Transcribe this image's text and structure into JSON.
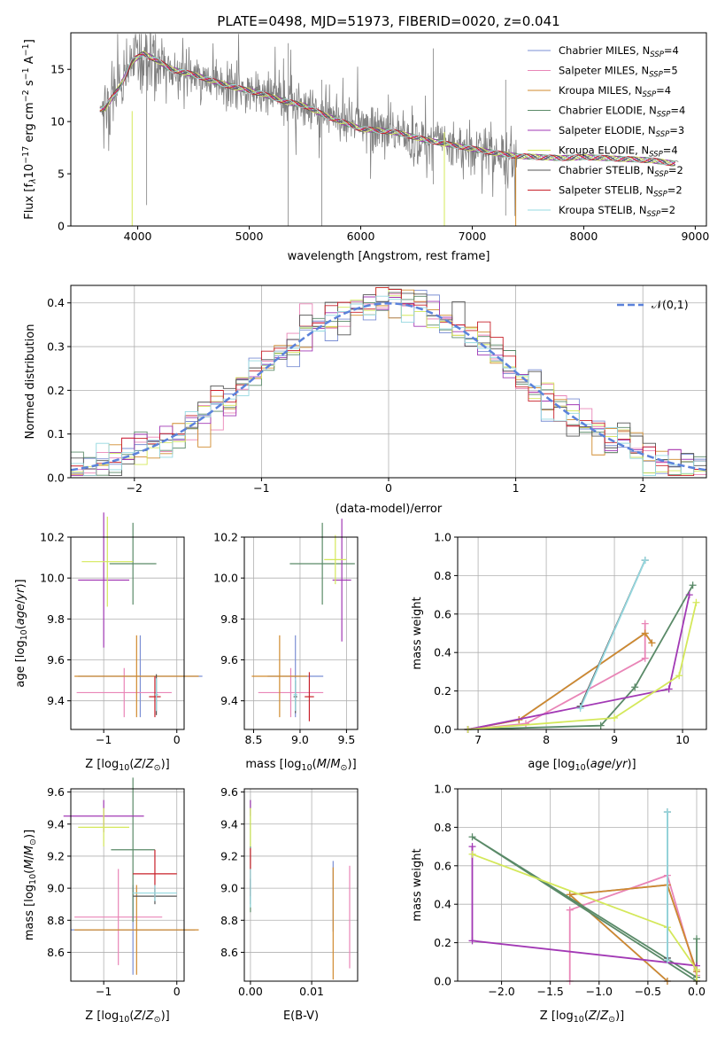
{
  "figure": {
    "title": "PLATE=0498, MJD=51973, FIBERID=0020, z=0.041"
  },
  "chart_data": [
    {
      "type": "line",
      "title": "PLATE=0498, MJD=51973, FIBERID=0020, z=0.041",
      "xlabel": "wavelength [Angstrom, rest frame]",
      "ylabel": "Flux [f_λ 10^-17 erg cm^-2 s^-1 A^-1]",
      "xlim": [
        3400,
        9100
      ],
      "ylim": [
        0,
        18.5
      ],
      "xticks": [
        4000,
        5000,
        6000,
        7000,
        8000,
        9000
      ],
      "yticks": [
        0,
        5,
        10,
        15
      ],
      "legend_position": "upper right",
      "series": [
        {
          "name": "Chabrier MILES, N_SSP=4",
          "color": "#7b8fd4"
        },
        {
          "name": "Salpeter MILES, N_SSP=5",
          "color": "#e985b7"
        },
        {
          "name": "Kroupa MILES, N_SSP=4",
          "color": "#d08a2e"
        },
        {
          "name": "Chabrier ELODIE, N_SSP=4",
          "color": "#5a8a68"
        },
        {
          "name": "Salpeter ELODIE, N_SSP=3",
          "color": "#a239b5"
        },
        {
          "name": "Kroupa ELODIE, N_SSP=4",
          "color": "#d4e85a"
        },
        {
          "name": "Chabrier STELIB, N_SSP=2",
          "color": "#555555"
        },
        {
          "name": "Salpeter STELIB, N_SSP=2",
          "color": "#c8202a"
        },
        {
          "name": "Kroupa STELIB, N_SSP=2",
          "color": "#94d8e0"
        }
      ],
      "continuum": {
        "x": [
          3700,
          3850,
          3950,
          4050,
          4150,
          4300,
          4500,
          4700,
          4900,
          5100,
          5300,
          5500,
          5700,
          6000,
          6300,
          6600,
          6900,
          7200,
          7400,
          7600,
          7800,
          8000,
          8200,
          8400,
          8600,
          8800
        ],
        "y": [
          11.2,
          13.5,
          15.8,
          16.5,
          16.0,
          15.0,
          14.5,
          13.8,
          13.2,
          12.7,
          12.0,
          11.5,
          10.5,
          9.3,
          9.0,
          8.2,
          7.6,
          7.0,
          6.7,
          6.6,
          6.5,
          6.6,
          6.5,
          6.4,
          6.3,
          6.0
        ]
      }
    },
    {
      "type": "bar",
      "xlabel": "(data-model)/error",
      "ylabel": "Normed distribution",
      "xlim": [
        -2.5,
        2.5
      ],
      "ylim": [
        0,
        0.44
      ],
      "xticks": [
        -2,
        -1,
        0,
        1,
        2
      ],
      "yticks": [
        0.0,
        0.1,
        0.2,
        0.3,
        0.4
      ],
      "grid": true,
      "legend_position": "upper right",
      "reference": {
        "name": "𝒩(0,1)",
        "mean": 0,
        "sigma": 1,
        "color": "#5b82db"
      }
    },
    {
      "type": "scatter",
      "xlabel": "Z [log10(Z/Z⊙)]",
      "ylabel": "age [log10(age/yr)]",
      "xlim": [
        -1.45,
        0.1
      ],
      "ylim": [
        9.26,
        10.2
      ],
      "xticks": [
        -1,
        0
      ],
      "yticks": [
        9.4,
        9.6,
        9.8,
        10.0,
        10.2
      ],
      "grid": true,
      "series": [
        {
          "name": "Chabrier MILES",
          "x": -0.5,
          "y": 9.52,
          "xerr": 0.85,
          "yerr": 0.2,
          "color": "#7b8fd4"
        },
        {
          "name": "Salpeter MILES",
          "x": -0.72,
          "y": 9.44,
          "xerr": 0.65,
          "yerr": 0.12,
          "color": "#e985b7"
        },
        {
          "name": "Kroupa MILES",
          "x": -0.55,
          "y": 9.52,
          "xerr": 0.85,
          "yerr": 0.2,
          "color": "#d08a2e"
        },
        {
          "name": "Chabrier ELODIE",
          "x": -0.6,
          "y": 10.07,
          "xerr": 0.32,
          "yerr": 0.2,
          "color": "#5a8a68"
        },
        {
          "name": "Salpeter ELODIE",
          "x": -1.0,
          "y": 9.99,
          "xerr": 0.35,
          "yerr": 0.33,
          "color": "#a239b5"
        },
        {
          "name": "Kroupa ELODIE",
          "x": -0.95,
          "y": 10.08,
          "xerr": 0.35,
          "yerr": 0.22,
          "color": "#d4e85a"
        },
        {
          "name": "Chabrier STELIB",
          "x": -0.28,
          "y": 9.43,
          "xerr": 0.02,
          "yerr": 0.1,
          "color": "#555555"
        },
        {
          "name": "Salpeter STELIB",
          "x": -0.3,
          "y": 9.42,
          "xerr": 0.08,
          "yerr": 0.1,
          "color": "#c8202a"
        },
        {
          "name": "Kroupa STELIB",
          "x": -0.28,
          "y": 9.43,
          "xerr": 0.02,
          "yerr": 0.08,
          "color": "#94d8e0"
        }
      ]
    },
    {
      "type": "scatter",
      "xlabel": "mass [log10(M/M⊙)]",
      "ylabel": "",
      "xlim": [
        8.4,
        9.62
      ],
      "ylim": [
        9.26,
        10.2
      ],
      "xticks": [
        8.5,
        9.0,
        9.5
      ],
      "yticks": [
        9.4,
        9.6,
        9.8,
        10.0,
        10.2
      ],
      "grid": true,
      "series": [
        {
          "name": "Chabrier MILES",
          "x": 8.95,
          "y": 9.52,
          "xerr": 0.3,
          "yerr": 0.2,
          "color": "#7b8fd4"
        },
        {
          "name": "Salpeter MILES",
          "x": 8.9,
          "y": 9.44,
          "xerr": 0.35,
          "yerr": 0.12,
          "color": "#e985b7"
        },
        {
          "name": "Kroupa MILES",
          "x": 8.78,
          "y": 9.52,
          "xerr": 0.3,
          "yerr": 0.2,
          "color": "#d08a2e"
        },
        {
          "name": "Chabrier ELODIE",
          "x": 9.24,
          "y": 10.07,
          "xerr": 0.35,
          "yerr": 0.2,
          "color": "#5a8a68"
        },
        {
          "name": "Salpeter ELODIE",
          "x": 9.45,
          "y": 9.99,
          "xerr": 0.1,
          "yerr": 0.3,
          "color": "#a239b5"
        },
        {
          "name": "Kroupa ELODIE",
          "x": 9.38,
          "y": 10.09,
          "xerr": 0.12,
          "yerr": 0.12,
          "color": "#d4e85a"
        },
        {
          "name": "Chabrier STELIB",
          "x": 8.95,
          "y": 9.42,
          "xerr": 0.02,
          "yerr": 0.08,
          "color": "#555555"
        },
        {
          "name": "Salpeter STELIB",
          "x": 9.1,
          "y": 9.42,
          "xerr": 0.05,
          "yerr": 0.12,
          "color": "#c8202a"
        },
        {
          "name": "Kroupa STELIB",
          "x": 8.95,
          "y": 9.43,
          "xerr": 0.02,
          "yerr": 0.08,
          "color": "#94d8e0"
        }
      ]
    },
    {
      "type": "line",
      "xlabel": "age [log10(age/yr)]",
      "ylabel": "mass weight",
      "xlim": [
        6.7,
        10.35
      ],
      "ylim": [
        0,
        1
      ],
      "xticks": [
        7,
        8,
        9,
        10
      ],
      "yticks": [
        0.0,
        0.2,
        0.4,
        0.6,
        0.8,
        1.0
      ],
      "grid": true,
      "series": [
        {
          "name": "Chabrier MILES",
          "x": [
            6.85,
            7.6,
            9.45,
            9.55
          ],
          "y": [
            0.0,
            0.05,
            0.5,
            0.45
          ],
          "color": "#7b8fd4"
        },
        {
          "name": "Salpeter MILES",
          "x": [
            6.85,
            7.7,
            9.45,
            9.45
          ],
          "y": [
            0.0,
            0.03,
            0.37,
            0.55
          ],
          "color": "#e985b7"
        },
        {
          "name": "Kroupa MILES",
          "x": [
            6.85,
            7.6,
            9.45,
            9.55
          ],
          "y": [
            0.0,
            0.05,
            0.5,
            0.45
          ],
          "color": "#d08a2e"
        },
        {
          "name": "Chabrier ELODIE",
          "x": [
            6.85,
            8.8,
            9.3,
            10.15
          ],
          "y": [
            0.0,
            0.02,
            0.22,
            0.75
          ],
          "color": "#5a8a68"
        },
        {
          "name": "Salpeter ELODIE",
          "x": [
            6.85,
            9.8,
            10.1
          ],
          "y": [
            0.0,
            0.21,
            0.7
          ],
          "color": "#a239b5"
        },
        {
          "name": "Kroupa ELODIE",
          "x": [
            6.85,
            9.0,
            9.95,
            10.2
          ],
          "y": [
            0.0,
            0.06,
            0.28,
            0.66
          ],
          "color": "#d4e85a"
        },
        {
          "name": "Chabrier STELIB",
          "x": [
            8.5,
            9.45
          ],
          "y": [
            0.12,
            0.88
          ],
          "color": "#555555"
        },
        {
          "name": "Kroupa STELIB",
          "x": [
            8.5,
            9.45
          ],
          "y": [
            0.11,
            0.88
          ],
          "color": "#94d8e0"
        }
      ]
    },
    {
      "type": "scatter",
      "xlabel": "Z [log10(Z/Z⊙)]",
      "ylabel": "mass [log10(M/M⊙)]",
      "xlim": [
        -1.45,
        0.1
      ],
      "ylim": [
        8.42,
        9.62
      ],
      "xticks": [
        -1,
        0
      ],
      "yticks": [
        8.6,
        8.8,
        9.0,
        9.2,
        9.4,
        9.6
      ],
      "grid": true,
      "series": [
        {
          "name": "Chabrier MILES",
          "x": -0.6,
          "y": 8.74,
          "xerr": 0.85,
          "yerr": 0.28,
          "color": "#7b8fd4"
        },
        {
          "name": "Salpeter MILES",
          "x": -0.8,
          "y": 8.82,
          "xerr": 0.6,
          "yerr": 0.3,
          "color": "#e985b7"
        },
        {
          "name": "Kroupa MILES",
          "x": -0.55,
          "y": 8.74,
          "xerr": 0.85,
          "yerr": 0.28,
          "color": "#d08a2e"
        },
        {
          "name": "Chabrier ELODIE",
          "x": -0.6,
          "y": 9.24,
          "xerr": 0.3,
          "yerr": 0.45,
          "color": "#5a8a68"
        },
        {
          "name": "Salpeter ELODIE",
          "x": -1.0,
          "y": 9.45,
          "xerr": 0.55,
          "yerr": 0.1,
          "color": "#a239b5"
        },
        {
          "name": "Kroupa ELODIE",
          "x": -1.0,
          "y": 9.38,
          "xerr": 0.35,
          "yerr": 0.12,
          "color": "#d4e85a"
        },
        {
          "name": "Chabrier STELIB",
          "x": -0.3,
          "y": 8.95,
          "xerr": 0.3,
          "yerr": 0.05,
          "color": "#555555"
        },
        {
          "name": "Salpeter STELIB",
          "x": -0.3,
          "y": 9.09,
          "xerr": 0.3,
          "yerr": 0.15,
          "color": "#c8202a"
        },
        {
          "name": "Kroupa STELIB",
          "x": -0.3,
          "y": 8.97,
          "xerr": 0.3,
          "yerr": 0.05,
          "color": "#94d8e0"
        }
      ]
    },
    {
      "type": "scatter",
      "xlabel": "E(B-V)",
      "ylabel": "",
      "xlim": [
        -0.001,
        0.0175
      ],
      "ylim": [
        8.42,
        9.62
      ],
      "xticks": [
        0.0,
        0.01
      ],
      "yticks": [
        8.6,
        8.8,
        9.0,
        9.2,
        9.4,
        9.6
      ],
      "grid": true,
      "series": [
        {
          "name": "Chabrier MILES",
          "x": 0.0135,
          "y": 8.95,
          "xerr": 0,
          "yerr": 0.22,
          "color": "#7b8fd4"
        },
        {
          "name": "Salpeter MILES",
          "x": 0.0162,
          "y": 8.82,
          "xerr": 0,
          "yerr": 0.32,
          "color": "#e985b7"
        },
        {
          "name": "Kroupa MILES",
          "x": 0.0135,
          "y": 8.78,
          "xerr": 0,
          "yerr": 0.35,
          "color": "#d08a2e"
        },
        {
          "name": "Chabrier ELODIE",
          "x": 0.0,
          "y": 9.2,
          "xerr": 0,
          "yerr": 0.35,
          "color": "#5a8a68"
        },
        {
          "name": "Salpeter ELODIE",
          "x": 0.0,
          "y": 9.5,
          "xerr": 0,
          "yerr": 0.05,
          "color": "#a239b5"
        },
        {
          "name": "Kroupa ELODIE",
          "x": 0.0,
          "y": 9.38,
          "xerr": 0,
          "yerr": 0.12,
          "color": "#d4e85a"
        },
        {
          "name": "Chabrier STELIB",
          "x": 0.0,
          "y": 8.98,
          "xerr": 0,
          "yerr": 0.08,
          "color": "#555555"
        },
        {
          "name": "Salpeter STELIB",
          "x": 0.0,
          "y": 9.1,
          "xerr": 0,
          "yerr": 0.15,
          "color": "#c8202a"
        },
        {
          "name": "Kroupa STELIB",
          "x": 0.0,
          "y": 9.0,
          "xerr": 0,
          "yerr": 0.12,
          "color": "#94d8e0"
        }
      ]
    },
    {
      "type": "line",
      "xlabel": "Z [log10(Z/Z⊙)]",
      "ylabel": "mass weight",
      "xlim": [
        -2.45,
        0.1
      ],
      "ylim": [
        0,
        1
      ],
      "xticks": [
        -2.0,
        -1.5,
        -1.0,
        -0.5,
        0.0
      ],
      "yticks": [
        0.0,
        0.2,
        0.4,
        0.6,
        0.8,
        1.0
      ],
      "grid": true,
      "series": [
        {
          "name": "Chabrier MILES",
          "x": [
            0.0,
            -0.3,
            -1.3,
            -0.3
          ],
          "y": [
            0.05,
            0.5,
            0.45,
            0.0
          ],
          "color": "#7b8fd4"
        },
        {
          "name": "Salpeter MILES",
          "x": [
            0.0,
            -0.3,
            -1.3,
            -1.3
          ],
          "y": [
            0.03,
            0.55,
            0.37,
            0.0
          ],
          "color": "#e985b7"
        },
        {
          "name": "Kroupa MILES",
          "x": [
            0.0,
            -0.3,
            -1.3,
            -0.3
          ],
          "y": [
            0.05,
            0.5,
            0.45,
            0.0
          ],
          "color": "#d08a2e"
        },
        {
          "name": "Chabrier ELODIE",
          "x": [
            0.0,
            -2.3,
            0.0,
            0.0
          ],
          "y": [
            0.02,
            0.75,
            0.0,
            0.22
          ],
          "color": "#5a8a68"
        },
        {
          "name": "Salpeter ELODIE",
          "x": [
            -2.3,
            -2.3,
            0.0,
            0.0
          ],
          "y": [
            0.7,
            0.21,
            0.08,
            0.0
          ],
          "color": "#a239b5"
        },
        {
          "name": "Kroupa ELODIE",
          "x": [
            -2.3,
            -0.3,
            0.0,
            0.0
          ],
          "y": [
            0.66,
            0.28,
            0.06,
            0.0
          ],
          "color": "#d4e85a"
        },
        {
          "name": "Chabrier STELIB",
          "x": [
            -0.3,
            -0.3
          ],
          "y": [
            0.12,
            0.88
          ],
          "color": "#555555"
        },
        {
          "name": "Kroupa STELIB",
          "x": [
            -0.3,
            -0.3
          ],
          "y": [
            0.11,
            0.88
          ],
          "color": "#94d8e0"
        }
      ]
    }
  ]
}
